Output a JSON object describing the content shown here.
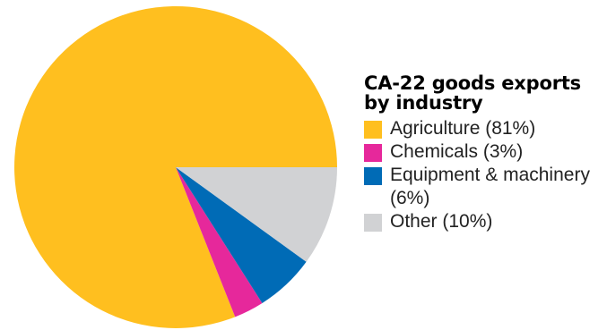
{
  "chart_data": {
    "type": "pie",
    "title": "CA-22 goods exports by industry",
    "slices": [
      {
        "label": "Agriculture (81%)",
        "category": "Agriculture",
        "value": 81,
        "color": "#FFBF1F"
      },
      {
        "label": "Chemicals (3%)",
        "category": "Chemicals",
        "value": 3,
        "color": "#E6289B"
      },
      {
        "label": "Equipment & machinery (6%)",
        "category": "Equipment & machinery",
        "value": 6,
        "color": "#006BB6"
      },
      {
        "label": "Other (10%)",
        "category": "Other",
        "value": 10,
        "color": "#D1D2D4"
      }
    ],
    "legend_position": "right"
  }
}
